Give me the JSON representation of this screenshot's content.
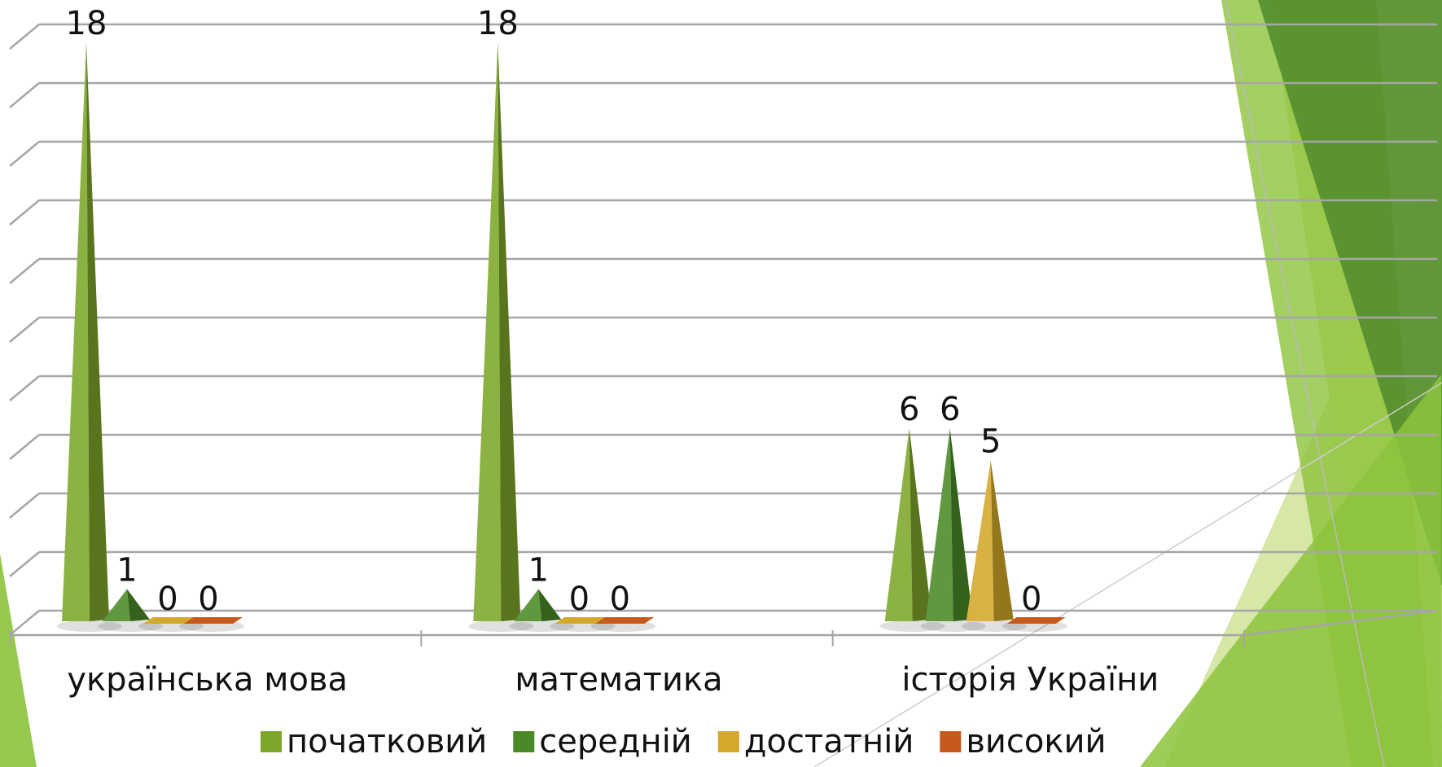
{
  "chart_data": {
    "type": "bar",
    "bar_shape": "3d-pyramid",
    "categories": [
      "українська мова",
      "математика",
      "історія України"
    ],
    "series": [
      {
        "name": "початковий",
        "values": [
          18,
          18,
          6
        ],
        "color": "#7ea72a"
      },
      {
        "name": "середній",
        "values": [
          1,
          1,
          6
        ],
        "color": "#4a8a26"
      },
      {
        "name": "достатній",
        "values": [
          0,
          0,
          5
        ],
        "color": "#d4a82a"
      },
      {
        "name": "високий",
        "values": [
          0,
          0,
          0
        ],
        "color": "#c65a1e"
      }
    ],
    "data_labels": true,
    "ylim": [
      0,
      18
    ],
    "gridlines": 10,
    "grid": true,
    "legend": "bottom",
    "title": "",
    "xlabel": "",
    "ylabel": ""
  },
  "theme": {
    "accent_light": "#c9df8a",
    "accent": "#8dc33c",
    "accent_dark": "#4f8a2a",
    "gridline": "#a6a6a6"
  }
}
